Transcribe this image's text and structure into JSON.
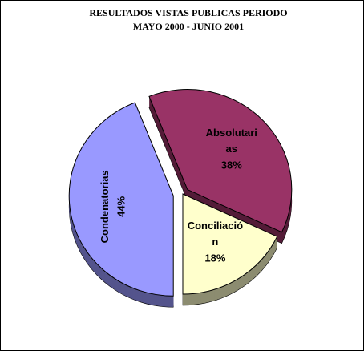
{
  "chart_data": {
    "type": "pie",
    "title": "RESULTADOS VISTAS PUBLICAS PERIODO",
    "subtitle": "MAYO 2000 - JUNIO  2001",
    "categories": [
      "Absolutarias",
      "Conciliación",
      "Condenatorias"
    ],
    "values": [
      38,
      18,
      44
    ],
    "value_labels": [
      "38%",
      "18%",
      "44%"
    ],
    "colors": [
      "#993366",
      "#ffffcc",
      "#9999ff"
    ]
  }
}
